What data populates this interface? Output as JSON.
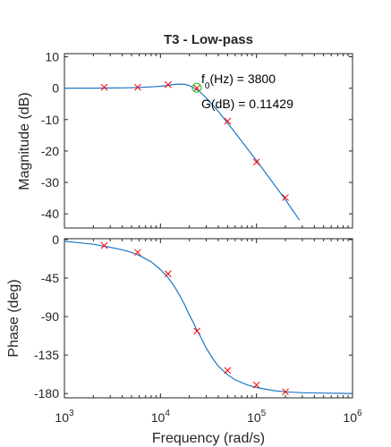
{
  "chart_data": [
    {
      "type": "line",
      "panel": "magnitude",
      "title": "T3 - Low-pass",
      "ylabel": "Magnitude (dB)",
      "xlabel": "",
      "xscale": "log",
      "xlim": [
        1000,
        1000000
      ],
      "ylim": [
        -44.5,
        11
      ],
      "yticks": [
        10,
        0,
        -10,
        -20,
        -30,
        -40
      ],
      "series": [
        {
          "name": "model",
          "style": "line",
          "color": "#1f77c4",
          "x": [
            1000,
            2000,
            4000,
            6000,
            8000,
            10000,
            12000,
            14000,
            16000,
            18000,
            20000,
            22000,
            24000,
            26000,
            28000,
            30000,
            35000,
            40000,
            50000,
            60000,
            80000,
            100000,
            140000,
            200000,
            280000
          ],
          "y": [
            0,
            0,
            0.1,
            0.2,
            0.4,
            0.6,
            0.9,
            1.2,
            1.3,
            1.2,
            0.8,
            0.2,
            -0.5,
            -1.3,
            -2.2,
            -3.1,
            -5.3,
            -7.4,
            -11.1,
            -14.2,
            -19.2,
            -23.0,
            -29.1,
            -35.5,
            -42.0
          ]
        },
        {
          "name": "measured",
          "style": "marker-x",
          "color": "#ff0000",
          "x": [
            2600,
            5800,
            12000,
            24000,
            50000,
            100000,
            200000
          ],
          "y": [
            0.3,
            0.3,
            1.1,
            0.0,
            -10.5,
            -23.5,
            -34.8
          ]
        }
      ],
      "annotation": {
        "marker_x": 23876,
        "marker_y": 0.11429,
        "marker_color": "#33cc33",
        "line1_prefix": "f",
        "line1_sub": "0",
        "line1_rest": "(Hz) = 3800",
        "line2": "G(dB) = 0.11429"
      }
    },
    {
      "type": "line",
      "panel": "phase",
      "title": "",
      "ylabel": "Phase (deg)",
      "xlabel": "Frequency  (rad/s)",
      "xscale": "log",
      "xlim": [
        1000,
        1000000
      ],
      "ylim": [
        -185,
        1
      ],
      "yticks": [
        0,
        -45,
        -90,
        -135,
        -180
      ],
      "xticks": [
        {
          "value": 1000,
          "base": "10",
          "exp": "3"
        },
        {
          "value": 10000,
          "base": "10",
          "exp": "4"
        },
        {
          "value": 100000,
          "base": "10",
          "exp": "5"
        },
        {
          "value": 1000000,
          "base": "10",
          "exp": "6"
        }
      ],
      "series": [
        {
          "name": "model",
          "style": "line",
          "color": "#1f77c4",
          "x": [
            1000,
            1500,
            2000,
            3000,
            4000,
            5000,
            6000,
            8000,
            10000,
            12000,
            14000,
            16000,
            18000,
            20000,
            22000,
            24000,
            26000,
            30000,
            35000,
            40000,
            50000,
            60000,
            80000,
            100000,
            150000,
            200000,
            300000,
            500000,
            1000000
          ],
          "y": [
            -2,
            -4,
            -5.5,
            -9,
            -12,
            -15,
            -18.5,
            -26,
            -35,
            -44.5,
            -55,
            -66,
            -77,
            -88,
            -97,
            -106,
            -113,
            -127,
            -139,
            -148,
            -158,
            -164,
            -170,
            -173,
            -176.5,
            -178,
            -179,
            -179.5,
            -180
          ]
        },
        {
          "name": "measured",
          "style": "marker-x",
          "color": "#ff0000",
          "x": [
            2600,
            5800,
            12000,
            24000,
            50000,
            100000,
            200000
          ],
          "y": [
            -7,
            -15,
            -40,
            -107,
            -153,
            -170,
            -178
          ]
        }
      ]
    }
  ]
}
